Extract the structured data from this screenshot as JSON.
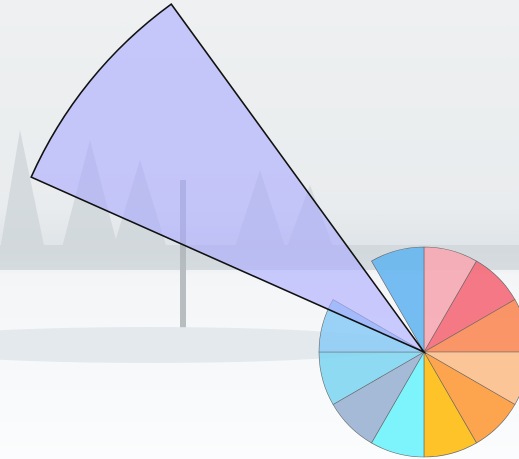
{
  "wheel": {
    "colors": [
      "#f6a9b3",
      "#f46a78",
      "#fa8a55",
      "#fcbf8c",
      "#fd9a3c",
      "#fdbd12",
      "#6ff2fb",
      "#9bb3d3",
      "#82d6f2",
      "#8fcdf5",
      "#aaaaff",
      "#66b6f0"
    ],
    "selected": 10
  }
}
